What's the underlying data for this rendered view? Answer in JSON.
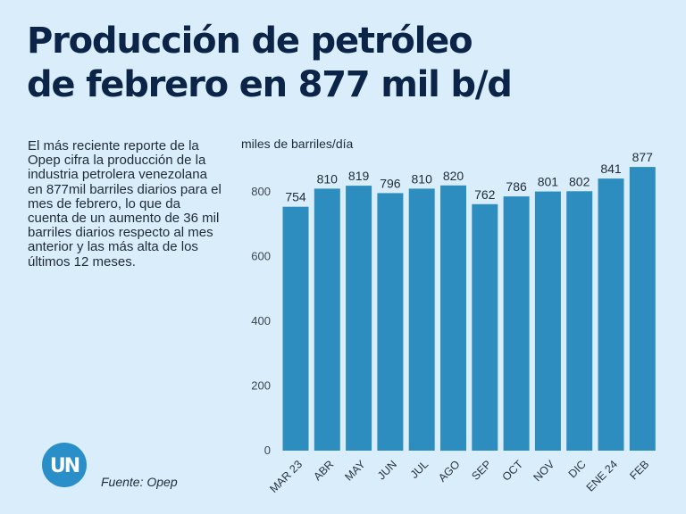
{
  "title": {
    "line1": "Producción de petróleo",
    "line2": "de febrero en 877 mil b/d"
  },
  "body_text": "El más reciente reporte de la Opep cifra la producción de la industria petrolera venezolana en 877mil barriles diarios para el mes de febrero, lo que da cuenta de un aumento de 36 mil barriles diarios respecto al mes anterior y las más alta de los últimos 12 meses.",
  "source": "Fuente: Opep",
  "logo": {
    "icon": "un-logo-icon",
    "text": "UN",
    "color": "#2a8fc9"
  },
  "colors": {
    "background": "#d9eefa",
    "bar": "#2e8dbf",
    "title": "#0c2447"
  },
  "chart_data": {
    "type": "bar",
    "ylabel": "miles de barriles/día",
    "categories": [
      "MAR 23",
      "ABR",
      "MAY",
      "JUN",
      "JUL",
      "AGO",
      "SEP",
      "OCT",
      "NOV",
      "DIC",
      "ENE 24",
      "FEB"
    ],
    "values": [
      754,
      810,
      819,
      796,
      810,
      820,
      762,
      786,
      801,
      802,
      841,
      877
    ],
    "data_labels": [
      "754",
      "810",
      "819",
      "796",
      "810",
      "820",
      "762",
      "786",
      "801",
      "802",
      "841",
      "877"
    ],
    "yticks": [
      0,
      200,
      400,
      600,
      800
    ],
    "ylim": [
      0,
      1000
    ],
    "grid": false,
    "legend": "none"
  }
}
